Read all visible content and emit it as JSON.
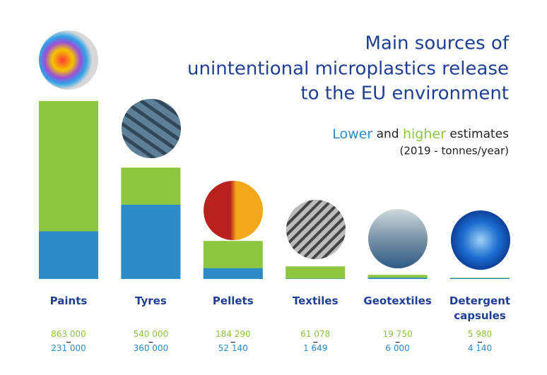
{
  "chart_data": {
    "type": "bar",
    "title": [
      "Main sources of",
      "unintentional microplastics release",
      "to the EU environment"
    ],
    "legend_joiner": "and",
    "legend_suffix": "estimates",
    "unit_note": "(2019 - tonnes/year)",
    "categories": [
      "Paints",
      "Tyres",
      "Pellets",
      "Textiles",
      "Geotextiles",
      "Detergent capsules"
    ],
    "series": [
      {
        "name": "Lower",
        "color": "#2e8bc9",
        "values": [
          231000,
          360000,
          52140,
          1649,
          6000,
          4140
        ],
        "value_labels": [
          "231 000",
          "360 000",
          "52 140",
          "1 649",
          "6 000",
          "4 140"
        ]
      },
      {
        "name": "higher",
        "color": "#8dc63f",
        "values": [
          863000,
          540000,
          184290,
          61078,
          19750,
          5980
        ],
        "value_labels": [
          "863 000",
          "540 000",
          "184 290",
          "61 078",
          "19 750",
          "5 980"
        ]
      }
    ]
  }
}
